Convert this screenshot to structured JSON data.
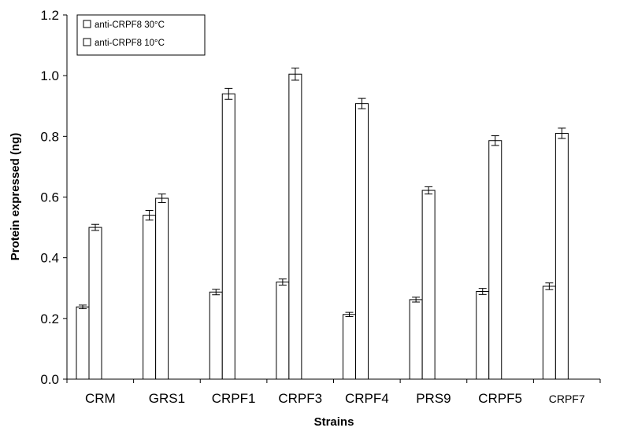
{
  "chart_data": {
    "type": "bar",
    "title": "",
    "xlabel": "Strains",
    "ylabel": "Protein expressed (ng)",
    "ylim": [
      0,
      1.2
    ],
    "yticks": [
      "0.0",
      "0.2",
      "0.4",
      "0.6",
      "0.8",
      "1.0",
      "1.2"
    ],
    "categories": [
      "CRM",
      "GRS1",
      "CRPF1",
      "CRPF3",
      "CRPF4",
      "PRS9",
      "CRPF5",
      "CRPF7"
    ],
    "legend_position": "top-left",
    "grid": false,
    "series": [
      {
        "name": "anti-CRPF8 30°C",
        "values": [
          0.238,
          0.54,
          0.287,
          0.32,
          0.213,
          0.262,
          0.289,
          0.306
        ],
        "errors": [
          0.006,
          0.016,
          0.009,
          0.01,
          0.007,
          0.008,
          0.01,
          0.011
        ]
      },
      {
        "name": "anti-CRPF8 10°C",
        "values": [
          0.5,
          0.596,
          0.94,
          1.005,
          0.908,
          0.622,
          0.786,
          0.81
        ],
        "errors": [
          0.01,
          0.014,
          0.018,
          0.02,
          0.017,
          0.012,
          0.016,
          0.017
        ]
      }
    ],
    "colors": {
      "bar_fill": "#ffffff",
      "stroke": "#000000"
    }
  }
}
